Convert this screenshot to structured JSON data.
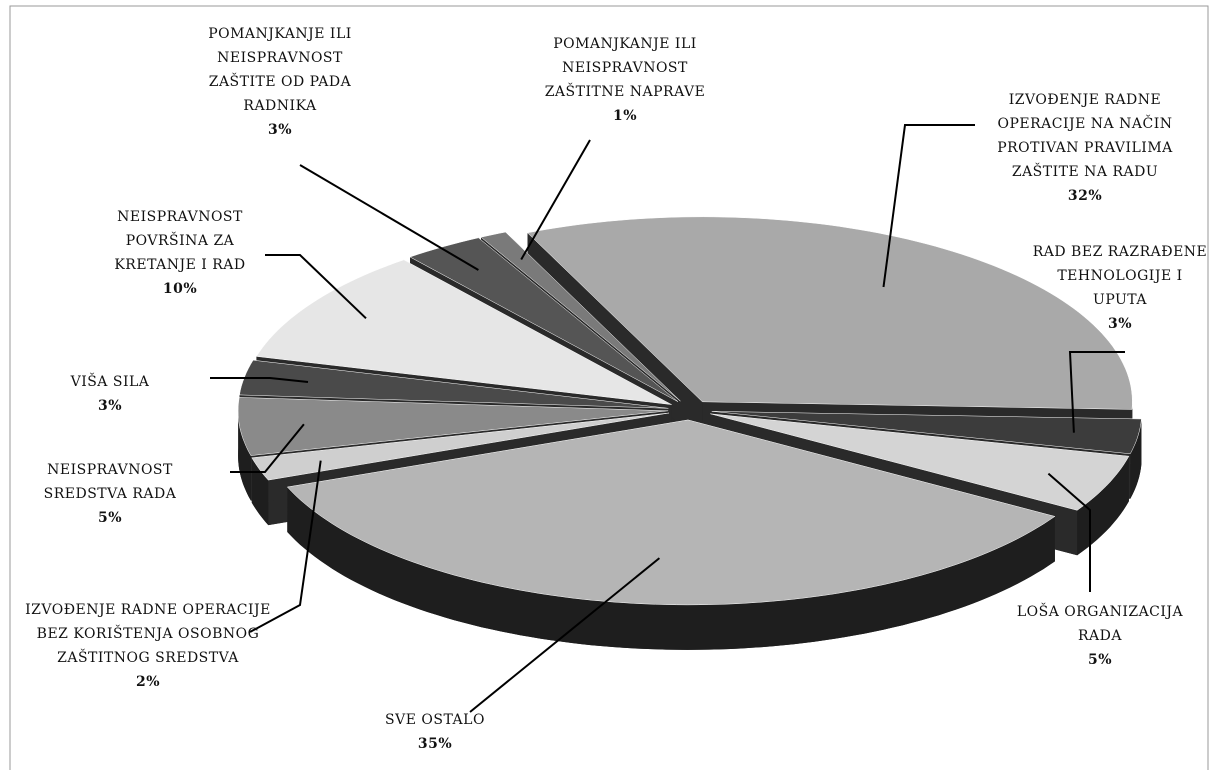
{
  "chart_data": {
    "type": "pie",
    "categories": [
      "IZVOĐENJE RADNE OPERACIJE NA NAČIN PROTIVAN PRAVILIMA ZAŠTITE NA RADU",
      "RAD BEZ RAZRAĐENE TEHNOLOGIJE I UPUTA",
      "LOŠA ORGANIZACIJA RADA",
      "SVE OSTALO",
      "IZVOĐENJE RADNE OPERACIJE BEZ KORIŠTENJA OSOBNOG ZAŠTITNOG SREDSTVA",
      "NEISPRAVNOST SREDSTVA RADA",
      "VIŠA SILA",
      "NEISPRAVNOST POVRŠINA ZA KRETANJE I RAD",
      "POMANJKANJE ILI NEISPRAVNOST ZAŠTITE OD PADA RADNIKA",
      "POMANJKANJE ILI NEISPRAVNOST ZAŠTITNE NAPRAVE"
    ],
    "values": [
      32,
      3,
      5,
      35,
      2,
      5,
      3,
      10,
      3,
      1
    ],
    "value_labels": [
      "32%",
      "3%",
      "5%",
      "35%",
      "2%",
      "5%",
      "3%",
      "10%",
      "3%",
      "1%"
    ],
    "colors": [
      "#a9a9a9",
      "#3c3c3c",
      "#d4d4d4",
      "#b5b5b5",
      "#cfcfcf",
      "#8a8a8a",
      "#4a4a4a",
      "#e6e6e6",
      "#555555",
      "#7a7a7a"
    ]
  }
}
